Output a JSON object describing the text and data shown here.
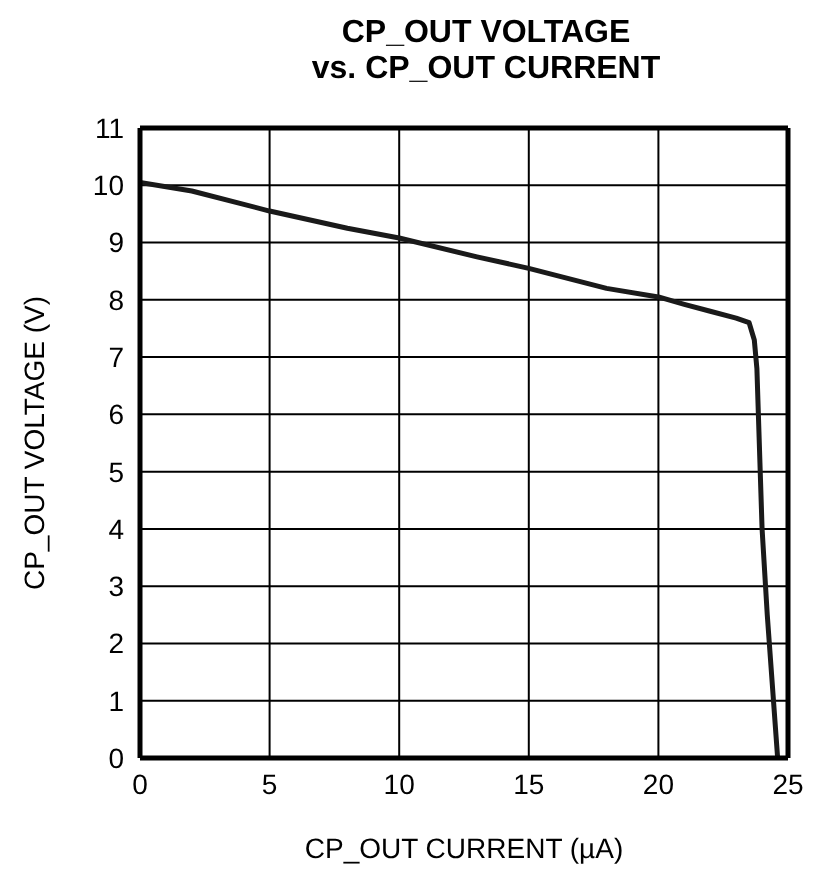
{
  "chart_data": {
    "type": "line",
    "title": "CP_OUT VOLTAGE\nvs. CP_OUT CURRENT",
    "xlabel": "CP_OUT CURRENT (µA)",
    "ylabel": "CP_OUT VOLTAGE (V)",
    "xlim": [
      0,
      25
    ],
    "xticks": [
      0,
      5,
      10,
      15,
      20,
      25
    ],
    "ylim": [
      0,
      11
    ],
    "yticks": [
      0,
      1,
      2,
      3,
      4,
      5,
      6,
      7,
      8,
      9,
      10,
      11
    ],
    "grid": true,
    "legend": false,
    "marker": "none",
    "line_style": "solid",
    "series": [
      {
        "color": "#1a1a1a",
        "x": [
          0,
          2,
          5,
          8,
          10,
          13,
          15,
          18,
          20,
          21,
          22,
          23,
          23.5,
          23.7,
          23.8,
          24,
          24.2,
          24.6
        ],
        "values": [
          10.05,
          9.9,
          9.55,
          9.25,
          9.08,
          8.75,
          8.55,
          8.2,
          8.05,
          7.92,
          7.8,
          7.68,
          7.6,
          7.3,
          6.8,
          4,
          2.5,
          0
        ]
      }
    ]
  }
}
